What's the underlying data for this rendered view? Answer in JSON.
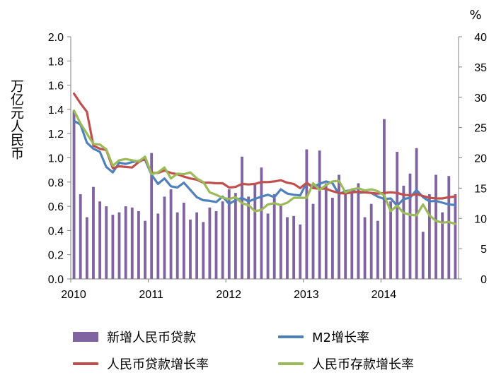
{
  "chart_data": {
    "type": "bar+line",
    "y_left_label": "万亿元人民币",
    "y_right_label": "%",
    "y_left_range": [
      0,
      2.0
    ],
    "y_left_ticks": [
      "0.0",
      "0.2",
      "0.4",
      "0.6",
      "0.8",
      "1.0",
      "1.2",
      "1.4",
      "1.6",
      "1.8",
      "2.0"
    ],
    "y_right_range": [
      0,
      40
    ],
    "y_right_ticks": [
      "0",
      "5",
      "10",
      "15",
      "20",
      "25",
      "30",
      "35",
      "40"
    ],
    "x_ticks": [
      "2010",
      "2011",
      "2012",
      "2013",
      "2014"
    ],
    "months": 60,
    "series": [
      {
        "name": "新增人民币贷款",
        "kind": "bar",
        "axis": "left",
        "color": "#8064A2",
        "values": [
          1.39,
          0.7,
          0.51,
          0.76,
          0.64,
          0.6,
          0.53,
          0.55,
          0.6,
          0.59,
          0.56,
          0.48,
          1.04,
          0.54,
          0.68,
          0.74,
          0.55,
          0.63,
          0.49,
          0.55,
          0.47,
          0.59,
          0.56,
          0.64,
          0.74,
          0.71,
          1.01,
          0.68,
          0.79,
          0.92,
          0.54,
          0.7,
          0.62,
          0.51,
          0.52,
          0.45,
          1.07,
          0.62,
          1.06,
          0.79,
          0.67,
          0.86,
          0.7,
          0.71,
          0.79,
          0.51,
          0.62,
          0.48,
          1.32,
          0.64,
          1.05,
          0.77,
          0.87,
          1.08,
          0.39,
          0.7,
          0.86,
          0.55,
          0.85,
          0.7
        ]
      },
      {
        "name": "M2增长率",
        "kind": "line",
        "axis": "right",
        "color": "#4F81BD",
        "values": [
          26.1,
          25.5,
          22.5,
          21.5,
          21.0,
          18.5,
          17.6,
          19.2,
          19.0,
          19.3,
          19.5,
          19.7,
          17.2,
          15.7,
          16.6,
          15.3,
          15.1,
          15.9,
          14.7,
          13.5,
          13.0,
          12.9,
          12.7,
          13.6,
          12.4,
          13.0,
          13.4,
          12.8,
          13.2,
          13.6,
          13.9,
          13.5,
          14.8,
          14.1,
          13.9,
          13.8,
          15.9,
          15.2,
          15.7,
          16.1,
          15.8,
          14.0,
          14.5,
          14.7,
          14.2,
          14.3,
          14.2,
          13.6,
          13.2,
          13.3,
          12.1,
          13.2,
          13.4,
          14.7,
          13.5,
          12.8,
          12.9,
          12.6,
          12.3,
          12.2
        ]
      },
      {
        "name": "人民币贷款增长率",
        "kind": "line",
        "axis": "right",
        "color": "#C0504D",
        "values": [
          30.6,
          29.0,
          27.6,
          22.0,
          21.5,
          21.3,
          18.3,
          18.6,
          18.5,
          18.4,
          19.3,
          19.9,
          17.5,
          17.5,
          17.9,
          17.5,
          17.3,
          16.9,
          16.6,
          16.4,
          15.9,
          15.9,
          15.8,
          15.8,
          15.1,
          15.2,
          15.7,
          15.6,
          15.7,
          16.0,
          16.0,
          16.1,
          16.3,
          15.9,
          15.7,
          15.0,
          15.9,
          15.0,
          14.9,
          14.9,
          14.5,
          14.2,
          14.1,
          14.3,
          14.4,
          14.3,
          14.2,
          14.1,
          14.2,
          14.3,
          14.2,
          13.9,
          13.8,
          14.0,
          13.7,
          13.4,
          13.3,
          13.3,
          13.5,
          13.6
        ]
      },
      {
        "name": "人民币存款增长率",
        "kind": "line",
        "axis": "right",
        "color": "#9BBB59",
        "values": [
          27.8,
          25.7,
          24.0,
          22.3,
          22.2,
          21.4,
          18.7,
          19.6,
          19.8,
          19.6,
          19.4,
          20.2,
          17.3,
          17.6,
          18.4,
          16.6,
          17.4,
          17.3,
          17.6,
          16.6,
          16.0,
          14.3,
          13.9,
          13.4,
          13.2,
          13.5,
          12.5,
          12.2,
          11.2,
          11.4,
          12.3,
          12.5,
          12.2,
          12.6,
          13.4,
          13.4,
          13.4,
          15.8,
          14.7,
          15.5,
          16.1,
          16.2,
          14.3,
          14.8,
          15.0,
          14.6,
          14.8,
          14.5,
          13.8,
          11.2,
          12.1,
          10.9,
          10.6,
          10.5,
          12.3,
          10.5,
          9.6,
          9.3,
          9.4,
          9.1
        ]
      }
    ]
  }
}
